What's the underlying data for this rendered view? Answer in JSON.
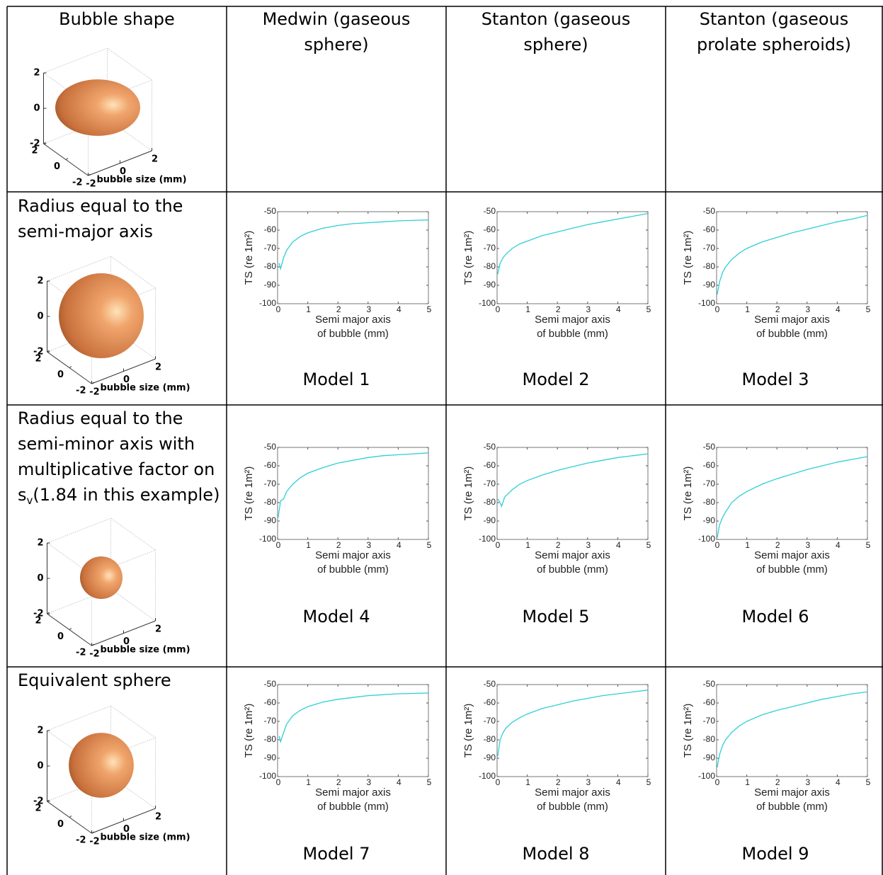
{
  "table": {
    "headers": [
      [
        "Bubble shape"
      ],
      [
        "Medwin (gaseous",
        "sphere)"
      ],
      [
        "Stanton (gaseous",
        "sphere)"
      ],
      [
        "Stanton (gaseous",
        "prolate spheroids)"
      ]
    ],
    "row_labels": [
      [
        "Radius equal to the",
        "semi-major axis"
      ],
      [
        "Radius equal to the",
        "semi-minor axis with",
        "multiplicative factor on"
      ],
      [
        "Equivalent sphere"
      ]
    ],
    "row_label_extra": {
      "text": "s",
      "sub": "v",
      "rest": "(1.84 in this example)"
    }
  },
  "bubbles": [
    {
      "zticks": [
        -2,
        0,
        2
      ],
      "xticks": [
        -2,
        0,
        2
      ],
      "yticks": [
        -2,
        0,
        2
      ],
      "xlabel": "bubble size (mm)",
      "radii": [
        2,
        1.33
      ]
    },
    {
      "zticks": [
        -2,
        0,
        2
      ],
      "xticks": [
        -2,
        0,
        2
      ],
      "yticks": [
        -2,
        0,
        2
      ],
      "xlabel": "bubble size (mm)",
      "radii": [
        2,
        2
      ]
    },
    {
      "zticks": [
        -2,
        0,
        2
      ],
      "xticks": [
        -2,
        0,
        2
      ],
      "yticks": [
        -2,
        0,
        2
      ],
      "xlabel": "bubble size (mm)",
      "radii": [
        1,
        1
      ]
    },
    {
      "zticks": [
        -2,
        0,
        2
      ],
      "xticks": [
        -2,
        0,
        2
      ],
      "yticks": [
        -2,
        0,
        2
      ],
      "xlabel": "bubble size (mm)",
      "radii": [
        1.53,
        1.53
      ]
    }
  ],
  "chart_data": [
    {
      "type": "line",
      "title": "Model 1",
      "xlabel": [
        "Semi major axis",
        "of bubble (mm)"
      ],
      "ylabel": "TS (re 1m²)",
      "color": "#2ecfd6",
      "x": [
        0.05,
        0.1,
        0.2,
        0.3,
        0.5,
        0.75,
        1,
        1.5,
        2,
        2.5,
        3,
        3.5,
        4,
        4.5,
        5
      ],
      "values": [
        -78,
        -81,
        -75,
        -71,
        -66.5,
        -63.5,
        -61.5,
        -59,
        -57.5,
        -56.5,
        -56,
        -55.5,
        -55,
        -54.7,
        -54.5
      ],
      "xlim": [
        0,
        5
      ],
      "ylim": [
        -100,
        -50
      ],
      "xticks": [
        0,
        1,
        2,
        3,
        4,
        5
      ],
      "yticks": [
        -100,
        -90,
        -80,
        -70,
        -60,
        -50
      ]
    },
    {
      "type": "line",
      "title": "Model 2",
      "xlabel": [
        "Semi major axis",
        "of bubble (mm)"
      ],
      "ylabel": "TS (re 1m²)",
      "color": "#2ecfd6",
      "x": [
        0.02,
        0.1,
        0.2,
        0.3,
        0.5,
        0.75,
        1,
        1.5,
        2,
        2.5,
        3,
        3.5,
        4,
        4.5,
        5
      ],
      "values": [
        -84,
        -78,
        -75,
        -73,
        -70,
        -67.5,
        -66,
        -63,
        -61,
        -59,
        -57,
        -55.5,
        -54,
        -52.5,
        -51
      ],
      "xlim": [
        0,
        5
      ],
      "ylim": [
        -100,
        -50
      ],
      "xticks": [
        0,
        1,
        2,
        3,
        4,
        5
      ],
      "yticks": [
        -100,
        -90,
        -80,
        -70,
        -60,
        -50
      ]
    },
    {
      "type": "line",
      "title": "Model 3",
      "xlabel": [
        "Semi major axis",
        "of bubble (mm)"
      ],
      "ylabel": "TS (re 1m²)",
      "color": "#2ecfd6",
      "x": [
        0.02,
        0.1,
        0.2,
        0.3,
        0.5,
        0.75,
        1,
        1.5,
        2,
        2.5,
        3,
        3.5,
        4,
        4.5,
        5
      ],
      "values": [
        -95,
        -88,
        -83,
        -80,
        -76,
        -72.5,
        -70,
        -66.5,
        -64,
        -61.5,
        -59.5,
        -57.5,
        -55.5,
        -54,
        -52
      ],
      "xlim": [
        0,
        5
      ],
      "ylim": [
        -100,
        -50
      ],
      "xticks": [
        0,
        1,
        2,
        3,
        4,
        5
      ],
      "yticks": [
        -100,
        -90,
        -80,
        -70,
        -60,
        -50
      ]
    },
    {
      "type": "line",
      "title": "Model 4",
      "xlabel": [
        "Semi major axis",
        "of bubble (mm)"
      ],
      "ylabel": "TS (re 1m²)",
      "color": "#2ecfd6",
      "x": [
        0.02,
        0.1,
        0.2,
        0.3,
        0.5,
        0.75,
        1,
        1.5,
        2,
        2.5,
        3,
        3.5,
        4,
        4.5,
        5
      ],
      "values": [
        -88,
        -79,
        -78,
        -74,
        -70,
        -66.5,
        -64,
        -61,
        -58.5,
        -57,
        -55.5,
        -54.5,
        -54,
        -53.5,
        -53
      ],
      "xlim": [
        0,
        5
      ],
      "ylim": [
        -100,
        -50
      ],
      "xticks": [
        0,
        1,
        2,
        3,
        4,
        5
      ],
      "yticks": [
        -100,
        -90,
        -80,
        -70,
        -60,
        -50
      ]
    },
    {
      "type": "line",
      "title": "Model 5",
      "xlabel": [
        "Semi major axis",
        "of bubble (mm)"
      ],
      "ylabel": "TS (re 1m²)",
      "color": "#2ecfd6",
      "x": [
        0.02,
        0.1,
        0.15,
        0.25,
        0.5,
        0.75,
        1,
        1.5,
        2,
        2.5,
        3,
        3.5,
        4,
        4.5,
        5
      ],
      "values": [
        -78,
        -80,
        -82,
        -77,
        -73,
        -70,
        -68,
        -65,
        -62.5,
        -60.5,
        -58.5,
        -57,
        -55.5,
        -54.5,
        -53.5
      ],
      "xlim": [
        0,
        5
      ],
      "ylim": [
        -100,
        -50
      ],
      "xticks": [
        0,
        1,
        2,
        3,
        4,
        5
      ],
      "yticks": [
        -100,
        -90,
        -80,
        -70,
        -60,
        -50
      ]
    },
    {
      "type": "line",
      "title": "Model 6",
      "xlabel": [
        "Semi major axis",
        "of bubble (mm)"
      ],
      "ylabel": "TS (re 1m²)",
      "color": "#2ecfd6",
      "x": [
        0.02,
        0.1,
        0.2,
        0.3,
        0.5,
        0.75,
        1,
        1.5,
        2,
        2.5,
        3,
        3.5,
        4,
        4.5,
        5
      ],
      "values": [
        -99,
        -92,
        -88,
        -85,
        -80,
        -76.5,
        -74,
        -70,
        -67,
        -64.5,
        -62,
        -60,
        -58,
        -56.5,
        -55
      ],
      "xlim": [
        0,
        5
      ],
      "ylim": [
        -100,
        -50
      ],
      "xticks": [
        0,
        1,
        2,
        3,
        4,
        5
      ],
      "yticks": [
        -100,
        -90,
        -80,
        -70,
        -60,
        -50
      ]
    },
    {
      "type": "line",
      "title": "Model 7",
      "xlabel": [
        "Semi major axis",
        "of bubble (mm)"
      ],
      "ylabel": "TS (re 1m²)",
      "color": "#2ecfd6",
      "x": [
        0.05,
        0.1,
        0.2,
        0.3,
        0.5,
        0.75,
        1,
        1.5,
        2,
        2.5,
        3,
        3.5,
        4,
        4.5,
        5
      ],
      "values": [
        -78,
        -81,
        -76,
        -71.5,
        -67,
        -64,
        -62,
        -59.5,
        -58,
        -57,
        -56,
        -55.5,
        -55,
        -54.8,
        -54.6
      ],
      "xlim": [
        0,
        5
      ],
      "ylim": [
        -100,
        -50
      ],
      "xticks": [
        0,
        1,
        2,
        3,
        4,
        5
      ],
      "yticks": [
        -100,
        -90,
        -80,
        -70,
        -60,
        -50
      ]
    },
    {
      "type": "line",
      "title": "Model 8",
      "xlabel": [
        "Semi major axis",
        "of bubble (mm)"
      ],
      "ylabel": "TS (re 1m²)",
      "color": "#2ecfd6",
      "x": [
        0.02,
        0.1,
        0.2,
        0.3,
        0.5,
        0.75,
        1,
        1.5,
        2,
        2.5,
        3,
        3.5,
        4,
        4.5,
        5
      ],
      "values": [
        -89,
        -80,
        -76,
        -73.5,
        -70.5,
        -68,
        -66,
        -63,
        -61,
        -59,
        -57.5,
        -56,
        -55,
        -54,
        -53
      ],
      "xlim": [
        0,
        5
      ],
      "ylim": [
        -100,
        -50
      ],
      "xticks": [
        0,
        1,
        2,
        3,
        4,
        5
      ],
      "yticks": [
        -100,
        -90,
        -80,
        -70,
        -60,
        -50
      ]
    },
    {
      "type": "line",
      "title": "Model 9",
      "xlabel": [
        "Semi major axis",
        "of bubble (mm)"
      ],
      "ylabel": "TS (re 1m²)",
      "color": "#2ecfd6",
      "x": [
        0.02,
        0.1,
        0.2,
        0.3,
        0.5,
        0.75,
        1,
        1.5,
        2,
        2.5,
        3,
        3.5,
        4,
        4.5,
        5
      ],
      "values": [
        -95,
        -88,
        -83,
        -80,
        -76,
        -72.5,
        -70,
        -66.5,
        -64,
        -62,
        -60,
        -58,
        -56.5,
        -55,
        -54
      ],
      "xlim": [
        0,
        5
      ],
      "ylim": [
        -100,
        -50
      ],
      "xticks": [
        0,
        1,
        2,
        3,
        4,
        5
      ],
      "yticks": [
        -100,
        -90,
        -80,
        -70,
        -60,
        -50
      ]
    }
  ]
}
